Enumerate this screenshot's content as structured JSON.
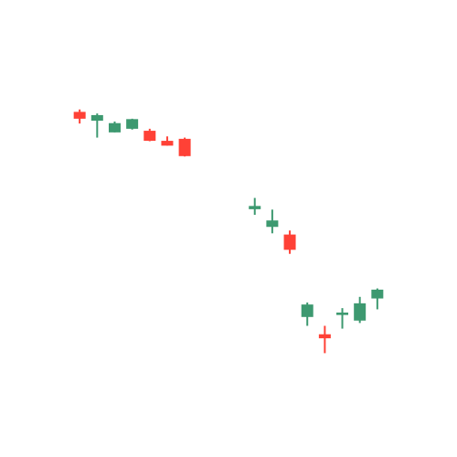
{
  "chart_data": {
    "type": "candlestick",
    "title": "",
    "xlabel": "",
    "ylabel": "",
    "axes_visible": false,
    "grid": false,
    "legend": "none",
    "ylim": [
      0,
      100
    ],
    "colors": {
      "up": "#3d9970",
      "down": "#ff4136"
    },
    "candles": [
      {
        "x": 1,
        "open": 79.0,
        "high": 79.6,
        "low": 76.1,
        "close": 77.3
      },
      {
        "x": 2,
        "open": 76.8,
        "high": 78.6,
        "low": 72.6,
        "close": 78.2
      },
      {
        "x": 3,
        "open": 73.9,
        "high": 76.6,
        "low": 73.9,
        "close": 76.2
      },
      {
        "x": 4,
        "open": 74.8,
        "high": 77.3,
        "low": 74.6,
        "close": 77.2
      },
      {
        "x": 5,
        "open": 74.3,
        "high": 74.8,
        "low": 71.7,
        "close": 71.8
      },
      {
        "x": 6,
        "open": 71.8,
        "high": 72.9,
        "low": 70.6,
        "close": 70.6
      },
      {
        "x": 7,
        "open": 72.3,
        "high": 72.6,
        "low": 67.9,
        "close": 68.0
      },
      {
        "x": 11,
        "open": 54.8,
        "high": 57.6,
        "low": 53.4,
        "close": 55.6
      },
      {
        "x": 12,
        "open": 50.4,
        "high": 54.7,
        "low": 48.8,
        "close": 52.0
      },
      {
        "x": 13,
        "open": 48.5,
        "high": 49.5,
        "low": 43.7,
        "close": 44.7
      },
      {
        "x": 14,
        "open": 28.0,
        "high": 31.6,
        "low": 25.8,
        "close": 31.1
      },
      {
        "x": 15,
        "open": 23.7,
        "high": 25.8,
        "low": 19.0,
        "close": 22.7
      },
      {
        "x": 16,
        "open": 28.5,
        "high": 30.2,
        "low": 25.1,
        "close": 29.1
      },
      {
        "x": 17,
        "open": 27.1,
        "high": 33.0,
        "low": 26.5,
        "close": 31.4
      },
      {
        "x": 18,
        "open": 32.6,
        "high": 35.1,
        "low": 29.9,
        "close": 34.8
      }
    ]
  }
}
